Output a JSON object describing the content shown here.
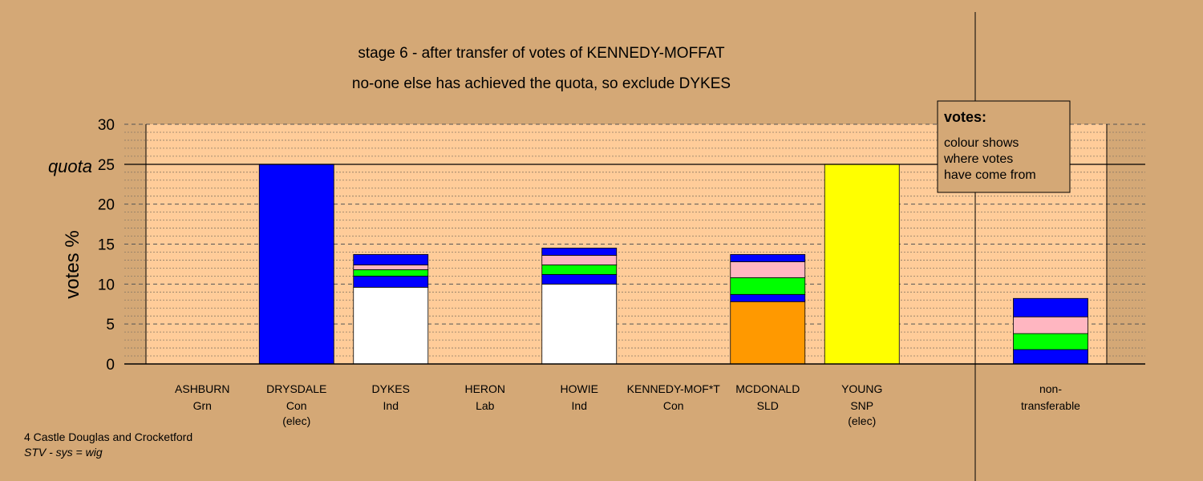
{
  "chart_data": {
    "type": "bar",
    "stacked": true,
    "title": "stage 6 - after transfer of votes of KENNEDY-MOFFAT",
    "subtitle": "no-one else has achieved the quota, so exclude DYKES",
    "ylabel": "votes %",
    "ylim": [
      0,
      30
    ],
    "yticks": [
      0,
      5,
      10,
      15,
      20,
      25,
      30
    ],
    "quota": 25,
    "quota_label": "quota",
    "grid": true,
    "categories": [
      {
        "name": "ASHBURN",
        "party": "Grn",
        "note": ""
      },
      {
        "name": "DRYSDALE",
        "party": "Con",
        "note": "(elec)"
      },
      {
        "name": "DYKES",
        "party": "Ind",
        "note": ""
      },
      {
        "name": "HERON",
        "party": "Lab",
        "note": ""
      },
      {
        "name": "HOWIE",
        "party": "Ind",
        "note": ""
      },
      {
        "name": "KENNEDY-MOF*T",
        "party": "Con",
        "note": ""
      },
      {
        "name": "MCDONALD",
        "party": "SLD",
        "note": ""
      },
      {
        "name": "YOUNG",
        "party": "SNP",
        "note": "(elec)"
      }
    ],
    "bars": [
      [],
      [
        {
          "value": 25.0,
          "color": "#0000ff"
        }
      ],
      [
        {
          "value": 9.6,
          "color": "#ffffff"
        },
        {
          "value": 1.4,
          "color": "#0000ff"
        },
        {
          "value": 0.8,
          "color": "#00ff00"
        },
        {
          "value": 0.6,
          "color": "#ffb6c1"
        },
        {
          "value": 1.3,
          "color": "#0000ff"
        }
      ],
      [],
      [
        {
          "value": 10.0,
          "color": "#ffffff"
        },
        {
          "value": 1.2,
          "color": "#0000ff"
        },
        {
          "value": 1.2,
          "color": "#00ff00"
        },
        {
          "value": 1.2,
          "color": "#ffb6c1"
        },
        {
          "value": 0.9,
          "color": "#0000ff"
        }
      ],
      [],
      [
        {
          "value": 7.8,
          "color": "#ff9900"
        },
        {
          "value": 0.9,
          "color": "#0000ff"
        },
        {
          "value": 2.1,
          "color": "#00ff00"
        },
        {
          "value": 2.0,
          "color": "#ffb6c1"
        },
        {
          "value": 0.9,
          "color": "#0000ff"
        }
      ],
      [
        {
          "value": 25.0,
          "color": "#ffff00"
        }
      ]
    ],
    "nontransferable": {
      "label_line1": "non-",
      "label_line2": "transferable",
      "segments": [
        {
          "value": 1.8,
          "color": "#0000ff"
        },
        {
          "value": 2.0,
          "color": "#00ff00"
        },
        {
          "value": 2.1,
          "color": "#ffb6c1"
        },
        {
          "value": 2.3,
          "color": "#0000ff"
        }
      ]
    },
    "legend": {
      "placement": "top-right",
      "title": "votes:",
      "lines": [
        "colour shows",
        "where votes",
        "have come from"
      ]
    },
    "footer": {
      "line1": "4 Castle Douglas and Crocketford",
      "line2": "STV - sys = wig"
    }
  },
  "colors": {
    "background": "#d4a876",
    "plot_area": "#ffcc99"
  }
}
